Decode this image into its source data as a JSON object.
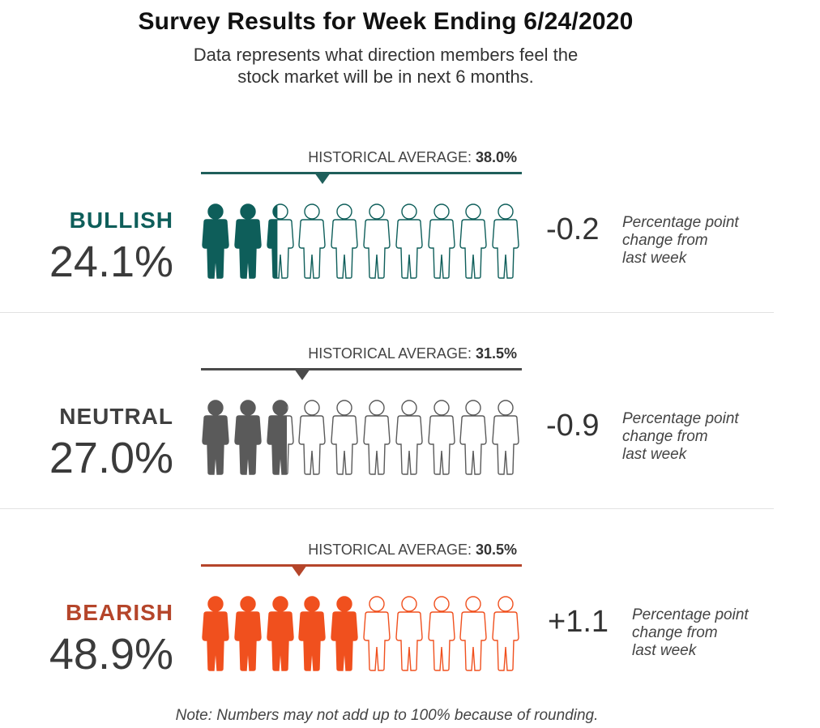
{
  "title": "Survey Results for Week Ending 6/24/2020",
  "subtitle_line1": "Data represents what direction members feel the",
  "subtitle_line2": "stock market will be in next 6 months.",
  "note": "Note: Numbers may not add up to 100% because of rounding.",
  "historical_label": "HISTORICAL AVERAGE: ",
  "chart_data": {
    "type": "pictograph",
    "title": "Survey Results for Week Ending 6/24/2020",
    "icons_per_row": 10,
    "categories": [
      "BULLISH",
      "NEUTRAL",
      "BEARISH"
    ],
    "rows": [
      {
        "label": "BULLISH",
        "percent_text": "24.1%",
        "value": 24.1,
        "historical_average_text": "38.0%",
        "historical_average": 38.0,
        "change_text": "-0.2",
        "change": -0.2,
        "change_note": [
          "Percentage point",
          "change from",
          "last week"
        ],
        "color": "#0e5e5a"
      },
      {
        "label": "NEUTRAL",
        "percent_text": "27.0%",
        "value": 27.0,
        "historical_average_text": "31.5%",
        "historical_average": 31.5,
        "change_text": "-0.9",
        "change": -0.9,
        "change_note": [
          "Percentage point",
          "change from",
          "last week"
        ],
        "color": "#5a5a5a"
      },
      {
        "label": "BEARISH",
        "percent_text": "48.9%",
        "value": 48.9,
        "historical_average_text": "30.5%",
        "historical_average": 30.5,
        "change_text": "+1.1",
        "change": 1.1,
        "change_note": [
          "Percentage point",
          "change from",
          "last week"
        ],
        "color": "#f0501e"
      }
    ]
  },
  "colors": {
    "bullish": "#0e5e5a",
    "neutral": "#5a5a5a",
    "bearish": "#f0501e",
    "bullish_label": "#0e5e5a",
    "neutral_label": "#3f3f3f",
    "bearish_label": "#b5452a",
    "bullish_line": "#1f5f5b",
    "neutral_line": "#4a4a4a",
    "bearish_line": "#b5452a"
  }
}
